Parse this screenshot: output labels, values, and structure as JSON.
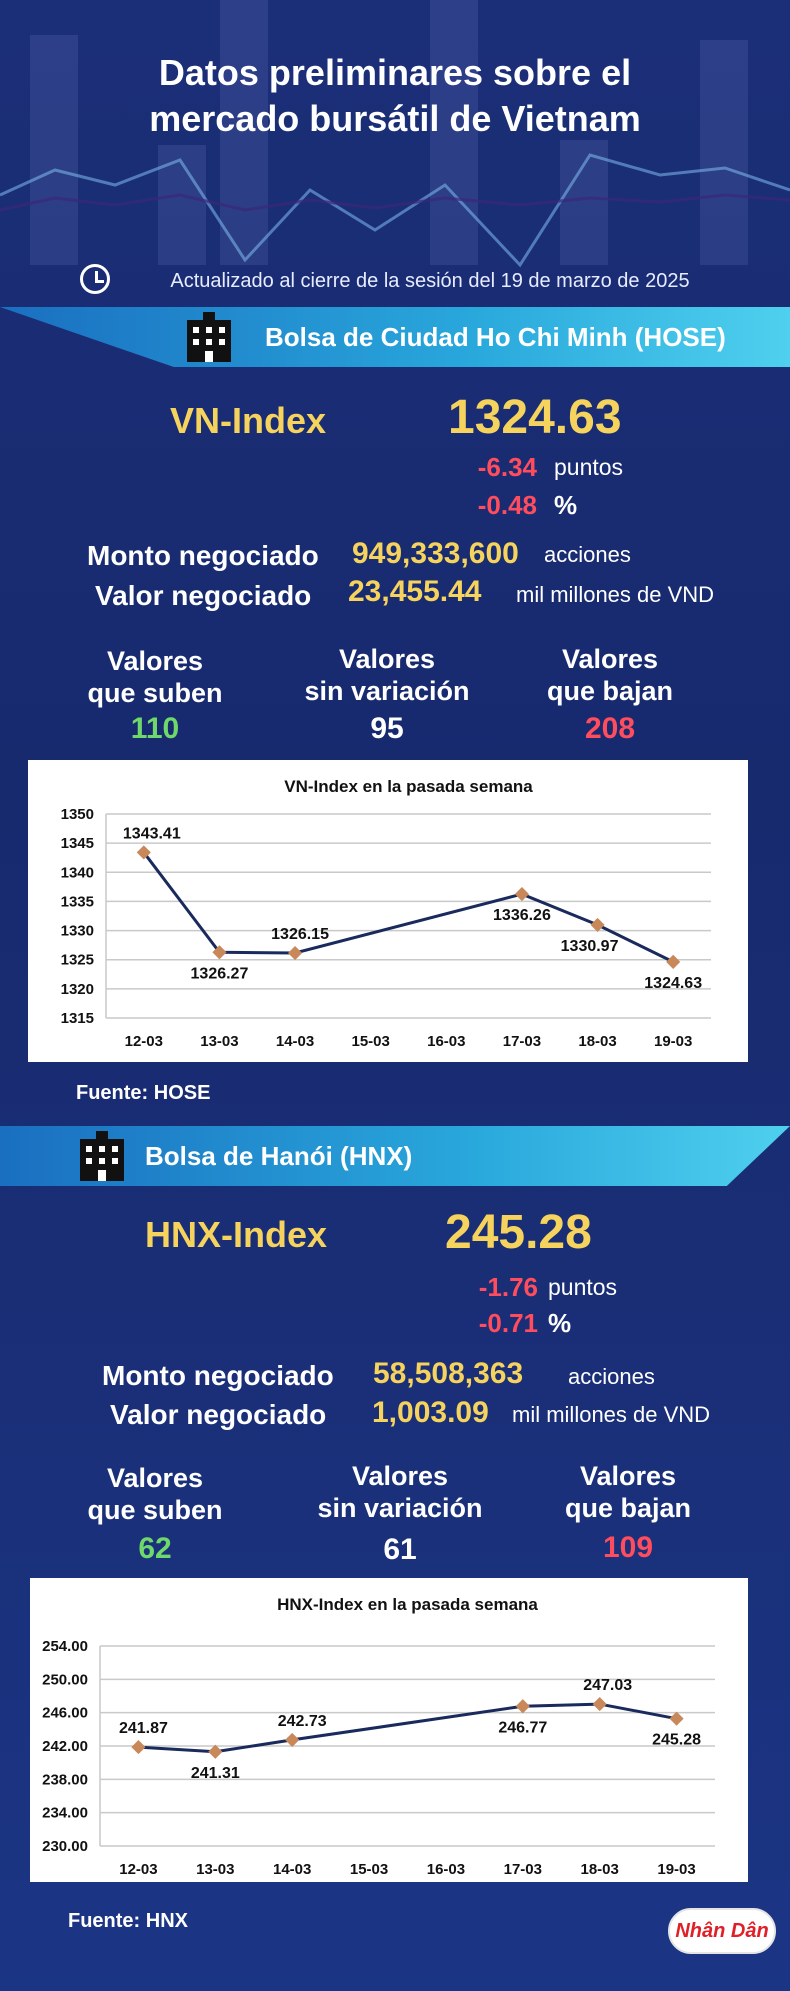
{
  "header": {
    "title_line1": "Datos preliminares sobre el",
    "title_line2": "mercado bursátil de Vietnam",
    "updated": "Actualizado al cierre de la sesión del 19 de marzo de 2025"
  },
  "hose": {
    "banner": "Bolsa de Ciudad Ho Chi Minh (HOSE)",
    "index_name": "VN-Index",
    "index_value": "1324.63",
    "change_points": "-6.34",
    "points_unit": "puntos",
    "change_pct": "-0.48",
    "pct_unit": "%",
    "volume_label": "Monto negociado",
    "volume_value": "949,333,600",
    "volume_unit": "acciones",
    "value_label": "Valor negociado",
    "value_value": "23,455.44",
    "value_unit": "mil millones de VND",
    "up_label_1": "Valores",
    "up_label_2": "que suben",
    "up_count": "110",
    "flat_label_1": "Valores",
    "flat_label_2": "sin variación",
    "flat_count": "95",
    "down_label_1": "Valores",
    "down_label_2": "que bajan",
    "down_count": "208",
    "source": "Fuente: HOSE"
  },
  "hnx": {
    "banner": "Bolsa de Hanói (HNX)",
    "index_name": "HNX-Index",
    "index_value": "245.28",
    "change_points": "-1.76",
    "points_unit": "puntos",
    "change_pct": "-0.71",
    "pct_unit": "%",
    "volume_label": "Monto negociado",
    "volume_value": "58,508,363",
    "volume_unit": "acciones",
    "value_label": "Valor negociado",
    "value_value": "1,003.09",
    "value_unit": "mil millones de VND",
    "up_label_1": "Valores",
    "up_label_2": "que suben",
    "up_count": "62",
    "flat_label_1": "Valores",
    "flat_label_2": "sin variación",
    "flat_count": "61",
    "down_label_1": "Valores",
    "down_label_2": "que bajan",
    "down_count": "109",
    "source": "Fuente:  HNX"
  },
  "logo_text": "Nhân Dân",
  "colors": {
    "background": "#1b2f78",
    "accent_yellow": "#f5d35c",
    "down_red": "#ff4d5e",
    "up_green": "#6fd86a",
    "line": "#1a2a5c",
    "marker": "#c8885a"
  },
  "icons": [
    "clock-icon",
    "building-icon"
  ],
  "chart_data": [
    {
      "type": "line",
      "title": "VN-Index en la pasada semana",
      "categories": [
        "12-03",
        "13-03",
        "14-03",
        "15-03",
        "16-03",
        "17-03",
        "18-03",
        "19-03"
      ],
      "series": [
        {
          "values": [
            1343.41,
            1326.27,
            1326.15,
            null,
            null,
            1336.26,
            1330.97,
            1324.63
          ]
        }
      ],
      "data_labels": [
        "1343.41",
        "1326.27",
        "1326.15",
        "",
        "",
        "1336.26",
        "1330.97",
        "1324.63"
      ],
      "yticks": [
        "1350",
        "1345",
        "1340",
        "1335",
        "1330",
        "1325",
        "1320",
        "1315"
      ],
      "ylim": [
        1315,
        1350
      ],
      "ystep": 5,
      "grid": true,
      "legend": "none"
    },
    {
      "type": "line",
      "title": "HNX-Index en la pasada semana",
      "categories": [
        "12-03",
        "13-03",
        "14-03",
        "15-03",
        "16-03",
        "17-03",
        "18-03",
        "19-03"
      ],
      "series": [
        {
          "values": [
            241.87,
            241.31,
            242.73,
            null,
            null,
            246.77,
            247.03,
            245.28
          ]
        }
      ],
      "data_labels": [
        "241.87",
        "241.31",
        "242.73",
        "",
        "",
        "246.77",
        "247.03",
        "245.28"
      ],
      "yticks": [
        "254.00",
        "250.00",
        "246.00",
        "242.00",
        "238.00",
        "234.00",
        "230.00"
      ],
      "ylim": [
        230,
        254
      ],
      "ystep": 4,
      "grid": true,
      "legend": "none"
    }
  ]
}
